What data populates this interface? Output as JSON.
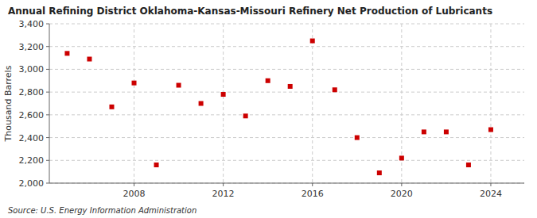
{
  "chart_data": {
    "type": "scatter",
    "title": "Annual Refining District Oklahoma-Kansas-Missouri Refinery Net Production of Lubricants",
    "y_label": "Thousand Barrels",
    "annotations": [
      "Source: U.S. Energy Information Administration"
    ],
    "x": [
      2005,
      2006,
      2007,
      2008,
      2009,
      2010,
      2011,
      2012,
      2013,
      2014,
      2015,
      2016,
      2017,
      2018,
      2019,
      2020,
      2021,
      2022,
      2023,
      2024
    ],
    "values": [
      3140,
      3090,
      2670,
      2880,
      2160,
      2860,
      2700,
      2780,
      2590,
      2900,
      2850,
      3250,
      2820,
      2400,
      2090,
      2220,
      2450,
      2450,
      2160,
      2470
    ],
    "color": "#cc0000",
    "marker": "square",
    "xlim": [
      2004.2,
      2025.5
    ],
    "xticks": [
      2008,
      2012,
      2016,
      2020,
      2024
    ],
    "ylim": [
      2000,
      3400
    ],
    "yticks": [
      {
        "value": 2000,
        "label": "2,000"
      },
      {
        "value": 2200,
        "label": "2,200"
      },
      {
        "value": 2400,
        "label": "2,400"
      },
      {
        "value": 2600,
        "label": "2,600"
      },
      {
        "value": 2800,
        "label": "2,800"
      },
      {
        "value": 3000,
        "label": "3,000"
      },
      {
        "value": 3200,
        "label": "3,200"
      },
      {
        "value": 3400,
        "label": "3,400"
      }
    ],
    "grid": true
  }
}
